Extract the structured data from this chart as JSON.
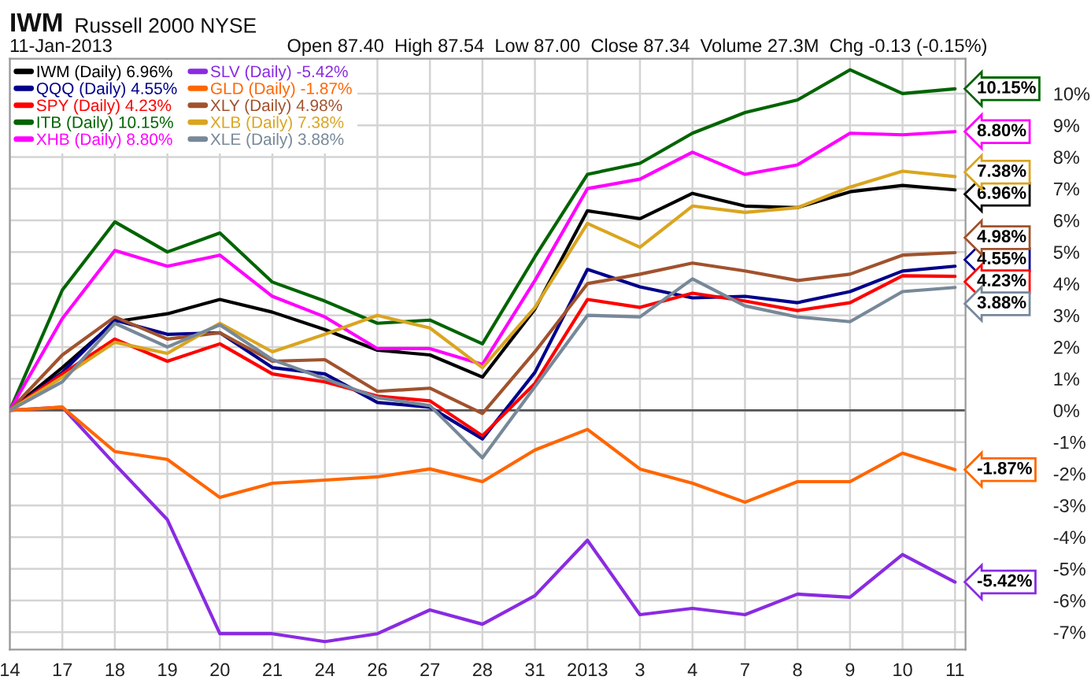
{
  "chart_data": {
    "type": "line",
    "title": "IWM",
    "subtitle": "Russell 2000 NYSE",
    "annotations": [
      "11-Jan-2013",
      "Open 87.40  High 87.54  Low 87.00  Close 87.34  Volume 27.3M  Chg -0.13 (-0.15%)"
    ],
    "categories": [
      "14",
      "17",
      "18",
      "19",
      "20",
      "21",
      "24",
      "26",
      "27",
      "28",
      "31",
      "2013",
      "3",
      "4",
      "7",
      "8",
      "9",
      "10",
      "11"
    ],
    "series": [
      {
        "name": "IWM (Daily) 6.96%",
        "color": "#000000",
        "values": [
          0,
          1.35,
          2.8,
          3.05,
          3.5,
          3.1,
          2.55,
          1.9,
          1.75,
          1.05,
          3.2,
          6.3,
          6.05,
          6.85,
          6.45,
          6.4,
          6.9,
          7.1,
          6.96
        ],
        "value_labels": [
          null,
          null,
          null,
          null,
          null,
          null,
          null,
          null,
          null,
          null,
          null,
          null,
          null,
          null,
          null,
          null,
          null,
          null,
          "6.96%"
        ]
      },
      {
        "name": "QQQ (Daily) 4.55%",
        "color": "#00008b",
        "values": [
          0,
          1.2,
          2.85,
          2.4,
          2.45,
          1.35,
          1.15,
          0.25,
          0.1,
          -0.9,
          1.2,
          4.45,
          3.9,
          3.55,
          3.6,
          3.4,
          3.75,
          4.4,
          4.55
        ],
        "value_labels": [
          null,
          null,
          null,
          null,
          null,
          null,
          null,
          null,
          null,
          null,
          null,
          null,
          null,
          null,
          null,
          null,
          null,
          null,
          "4.55%"
        ]
      },
      {
        "name": "SPY (Daily) 4.23%",
        "color": "#ff0000",
        "values": [
          0,
          1.15,
          2.25,
          1.55,
          2.1,
          1.15,
          0.9,
          0.45,
          0.3,
          -0.8,
          0.85,
          3.5,
          3.25,
          3.7,
          3.45,
          3.15,
          3.4,
          4.25,
          4.23
        ],
        "value_labels": [
          null,
          null,
          null,
          null,
          null,
          null,
          null,
          null,
          null,
          null,
          null,
          null,
          null,
          null,
          null,
          null,
          null,
          null,
          "4.23%"
        ]
      },
      {
        "name": "ITB (Daily) 10.15%",
        "color": "#006400",
        "values": [
          0,
          3.8,
          5.95,
          5.0,
          5.6,
          4.05,
          3.45,
          2.75,
          2.85,
          2.1,
          4.85,
          7.45,
          7.8,
          8.75,
          9.4,
          9.8,
          10.75,
          10.0,
          10.15
        ],
        "value_labels": [
          null,
          null,
          null,
          null,
          null,
          null,
          null,
          null,
          null,
          null,
          null,
          null,
          null,
          null,
          null,
          null,
          null,
          null,
          "10.15%"
        ]
      },
      {
        "name": "XHB (Daily) 8.80%",
        "color": "#ff00ff",
        "values": [
          0,
          2.9,
          5.05,
          4.55,
          4.9,
          3.6,
          2.95,
          1.95,
          1.95,
          1.45,
          4.1,
          7.0,
          7.3,
          8.15,
          7.45,
          7.75,
          8.75,
          8.7,
          8.8
        ],
        "value_labels": [
          null,
          null,
          null,
          null,
          null,
          null,
          null,
          null,
          null,
          null,
          null,
          null,
          null,
          null,
          null,
          null,
          null,
          null,
          "8.80%"
        ]
      },
      {
        "name": "SLV (Daily) -5.42%",
        "color": "#8a2be2",
        "values": [
          0,
          0.1,
          -1.7,
          -3.45,
          -7.05,
          -7.05,
          -7.3,
          -7.05,
          -6.3,
          -6.75,
          -5.85,
          -4.1,
          -6.45,
          -6.25,
          -6.45,
          -5.8,
          -5.9,
          -4.55,
          -5.42
        ],
        "value_labels": [
          null,
          null,
          null,
          null,
          null,
          null,
          null,
          null,
          null,
          null,
          null,
          null,
          null,
          null,
          null,
          null,
          null,
          null,
          "-5.42%"
        ]
      },
      {
        "name": "GLD (Daily) -1.87%",
        "color": "#ff6600",
        "values": [
          0,
          0.1,
          -1.3,
          -1.55,
          -2.75,
          -2.3,
          -2.2,
          -2.1,
          -1.85,
          -2.25,
          -1.25,
          -0.6,
          -1.85,
          -2.3,
          -2.9,
          -2.25,
          -2.25,
          -1.35,
          -1.87
        ],
        "value_labels": [
          null,
          null,
          null,
          null,
          null,
          null,
          null,
          null,
          null,
          null,
          null,
          null,
          null,
          null,
          null,
          null,
          null,
          null,
          "-1.87%"
        ]
      },
      {
        "name": "XLY (Daily) 4.98%",
        "color": "#a0522d",
        "values": [
          0,
          1.75,
          2.95,
          2.25,
          2.45,
          1.55,
          1.6,
          0.6,
          0.7,
          -0.1,
          1.85,
          4.0,
          4.3,
          4.65,
          4.4,
          4.1,
          4.3,
          4.9,
          4.98
        ],
        "value_labels": [
          null,
          null,
          null,
          null,
          null,
          null,
          null,
          null,
          null,
          null,
          null,
          null,
          null,
          null,
          null,
          null,
          null,
          null,
          "4.98%"
        ]
      },
      {
        "name": "XLB (Daily) 7.38%",
        "color": "#daa520",
        "values": [
          0,
          1.05,
          2.15,
          1.8,
          2.75,
          1.85,
          2.4,
          3.0,
          2.6,
          1.35,
          3.25,
          5.9,
          5.15,
          6.45,
          6.25,
          6.4,
          7.05,
          7.55,
          7.38
        ],
        "value_labels": [
          null,
          null,
          null,
          null,
          null,
          null,
          null,
          null,
          null,
          null,
          null,
          null,
          null,
          null,
          null,
          null,
          null,
          null,
          "7.38%"
        ]
      },
      {
        "name": "XLE (Daily) 3.88%",
        "color": "#778899",
        "values": [
          0,
          0.9,
          2.75,
          2.0,
          2.7,
          1.6,
          1.0,
          0.4,
          0.15,
          -1.5,
          0.75,
          3.0,
          2.95,
          4.15,
          3.3,
          2.95,
          2.8,
          3.75,
          3.88
        ],
        "value_labels": [
          null,
          null,
          null,
          null,
          null,
          null,
          null,
          null,
          null,
          null,
          null,
          null,
          null,
          null,
          null,
          null,
          null,
          null,
          "3.88%"
        ]
      }
    ],
    "ylim": [
      -7.55,
      11.1
    ],
    "yticks": [
      {
        "value": -7,
        "label": "-7%"
      },
      {
        "value": -6,
        "label": "-6%"
      },
      {
        "value": -5,
        "label": "-5%"
      },
      {
        "value": -4,
        "label": "-4%"
      },
      {
        "value": -3,
        "label": "-3%"
      },
      {
        "value": -2,
        "label": "-2%"
      },
      {
        "value": -1,
        "label": "-1%"
      },
      {
        "value": 0,
        "label": "0%"
      },
      {
        "value": 1,
        "label": "1%"
      },
      {
        "value": 2,
        "label": "2%"
      },
      {
        "value": 3,
        "label": "3%"
      },
      {
        "value": 4,
        "label": "4%"
      },
      {
        "value": 5,
        "label": "5%"
      },
      {
        "value": 6,
        "label": "6%"
      },
      {
        "value": 7,
        "label": "7%"
      },
      {
        "value": 8,
        "label": "8%"
      },
      {
        "value": 9,
        "label": "9%"
      },
      {
        "value": 10,
        "label": "10%"
      }
    ],
    "ref_lines": [
      {
        "axis": "y",
        "value": 0,
        "color": "#555555"
      }
    ],
    "grid": true,
    "legend": "top left"
  }
}
